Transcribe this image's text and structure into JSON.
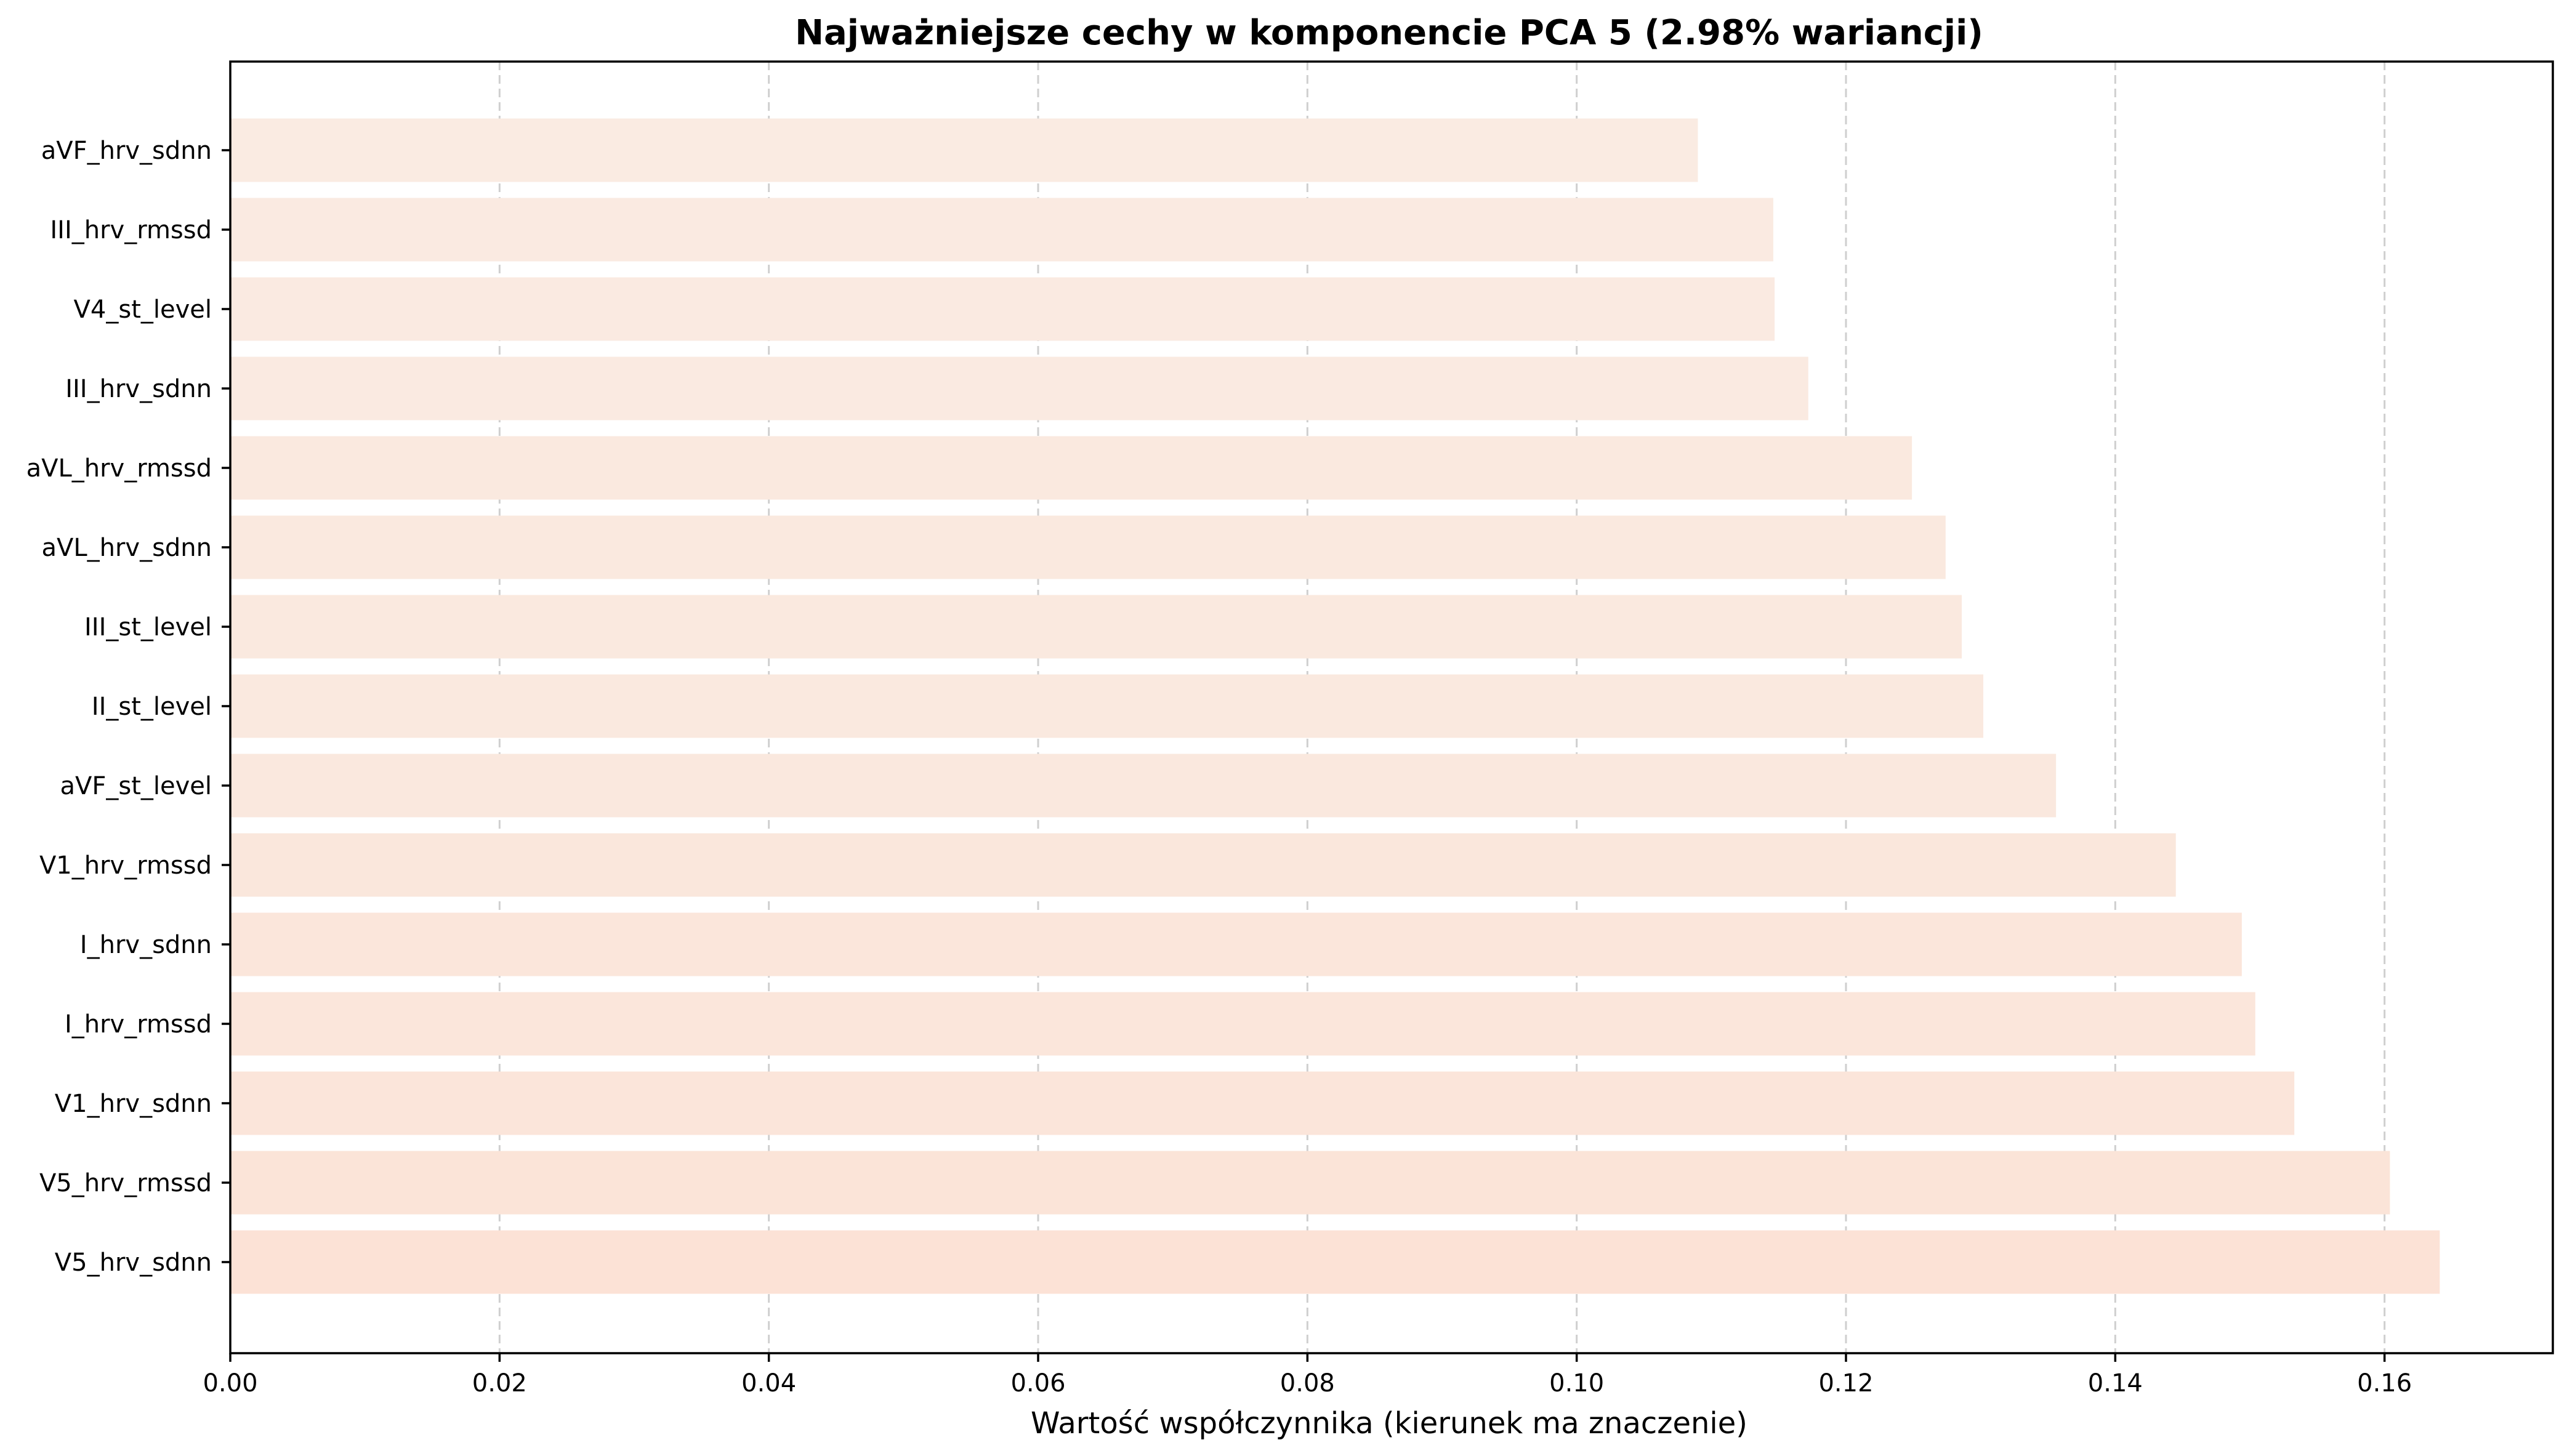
{
  "chart_data": {
    "type": "bar",
    "orientation": "horizontal",
    "title": "Najważniejsze cechy w komponencie PCA 5 (2.98% wariancji)",
    "xlabel": "Wartość współczynnika (kierunek ma znaczenie)",
    "ylabel": "",
    "xlim": [
      0.0,
      0.1725
    ],
    "grid": "x-dashed",
    "categories": [
      "aVF_hrv_sdnn",
      "III_hrv_rmssd",
      "V4_st_level",
      "III_hrv_sdnn",
      "aVL_hrv_rmssd",
      "aVL_hrv_sdnn",
      "III_st_level",
      "II_st_level",
      "aVF_st_level",
      "V1_hrv_rmssd",
      "I_hrv_sdnn",
      "I_hrv_rmssd",
      "V1_hrv_sdnn",
      "V5_hrv_rmssd",
      "V5_hrv_sdnn"
    ],
    "values": [
      0.109,
      0.1146,
      0.1147,
      0.1172,
      0.1249,
      0.1274,
      0.1286,
      0.1302,
      0.1356,
      0.1445,
      0.1494,
      0.1504,
      0.1533,
      0.1604,
      0.1641
    ],
    "bar_colors": [
      "#faebe2",
      "#faeae1",
      "#faeae1",
      "#faeae1",
      "#fae9df",
      "#fae9df",
      "#fae9df",
      "#fae9df",
      "#fae8de",
      "#fae7dc",
      "#fbe6db",
      "#fbe6db",
      "#fbe5da",
      "#fbe4d8",
      "#fce2d6"
    ],
    "x_ticks": [
      "0.00",
      "0.02",
      "0.04",
      "0.06",
      "0.08",
      "0.10",
      "0.12",
      "0.14",
      "0.16"
    ],
    "x_tick_values": [
      0.0,
      0.02,
      0.04,
      0.06,
      0.08,
      0.1,
      0.12,
      0.14,
      0.16
    ]
  }
}
